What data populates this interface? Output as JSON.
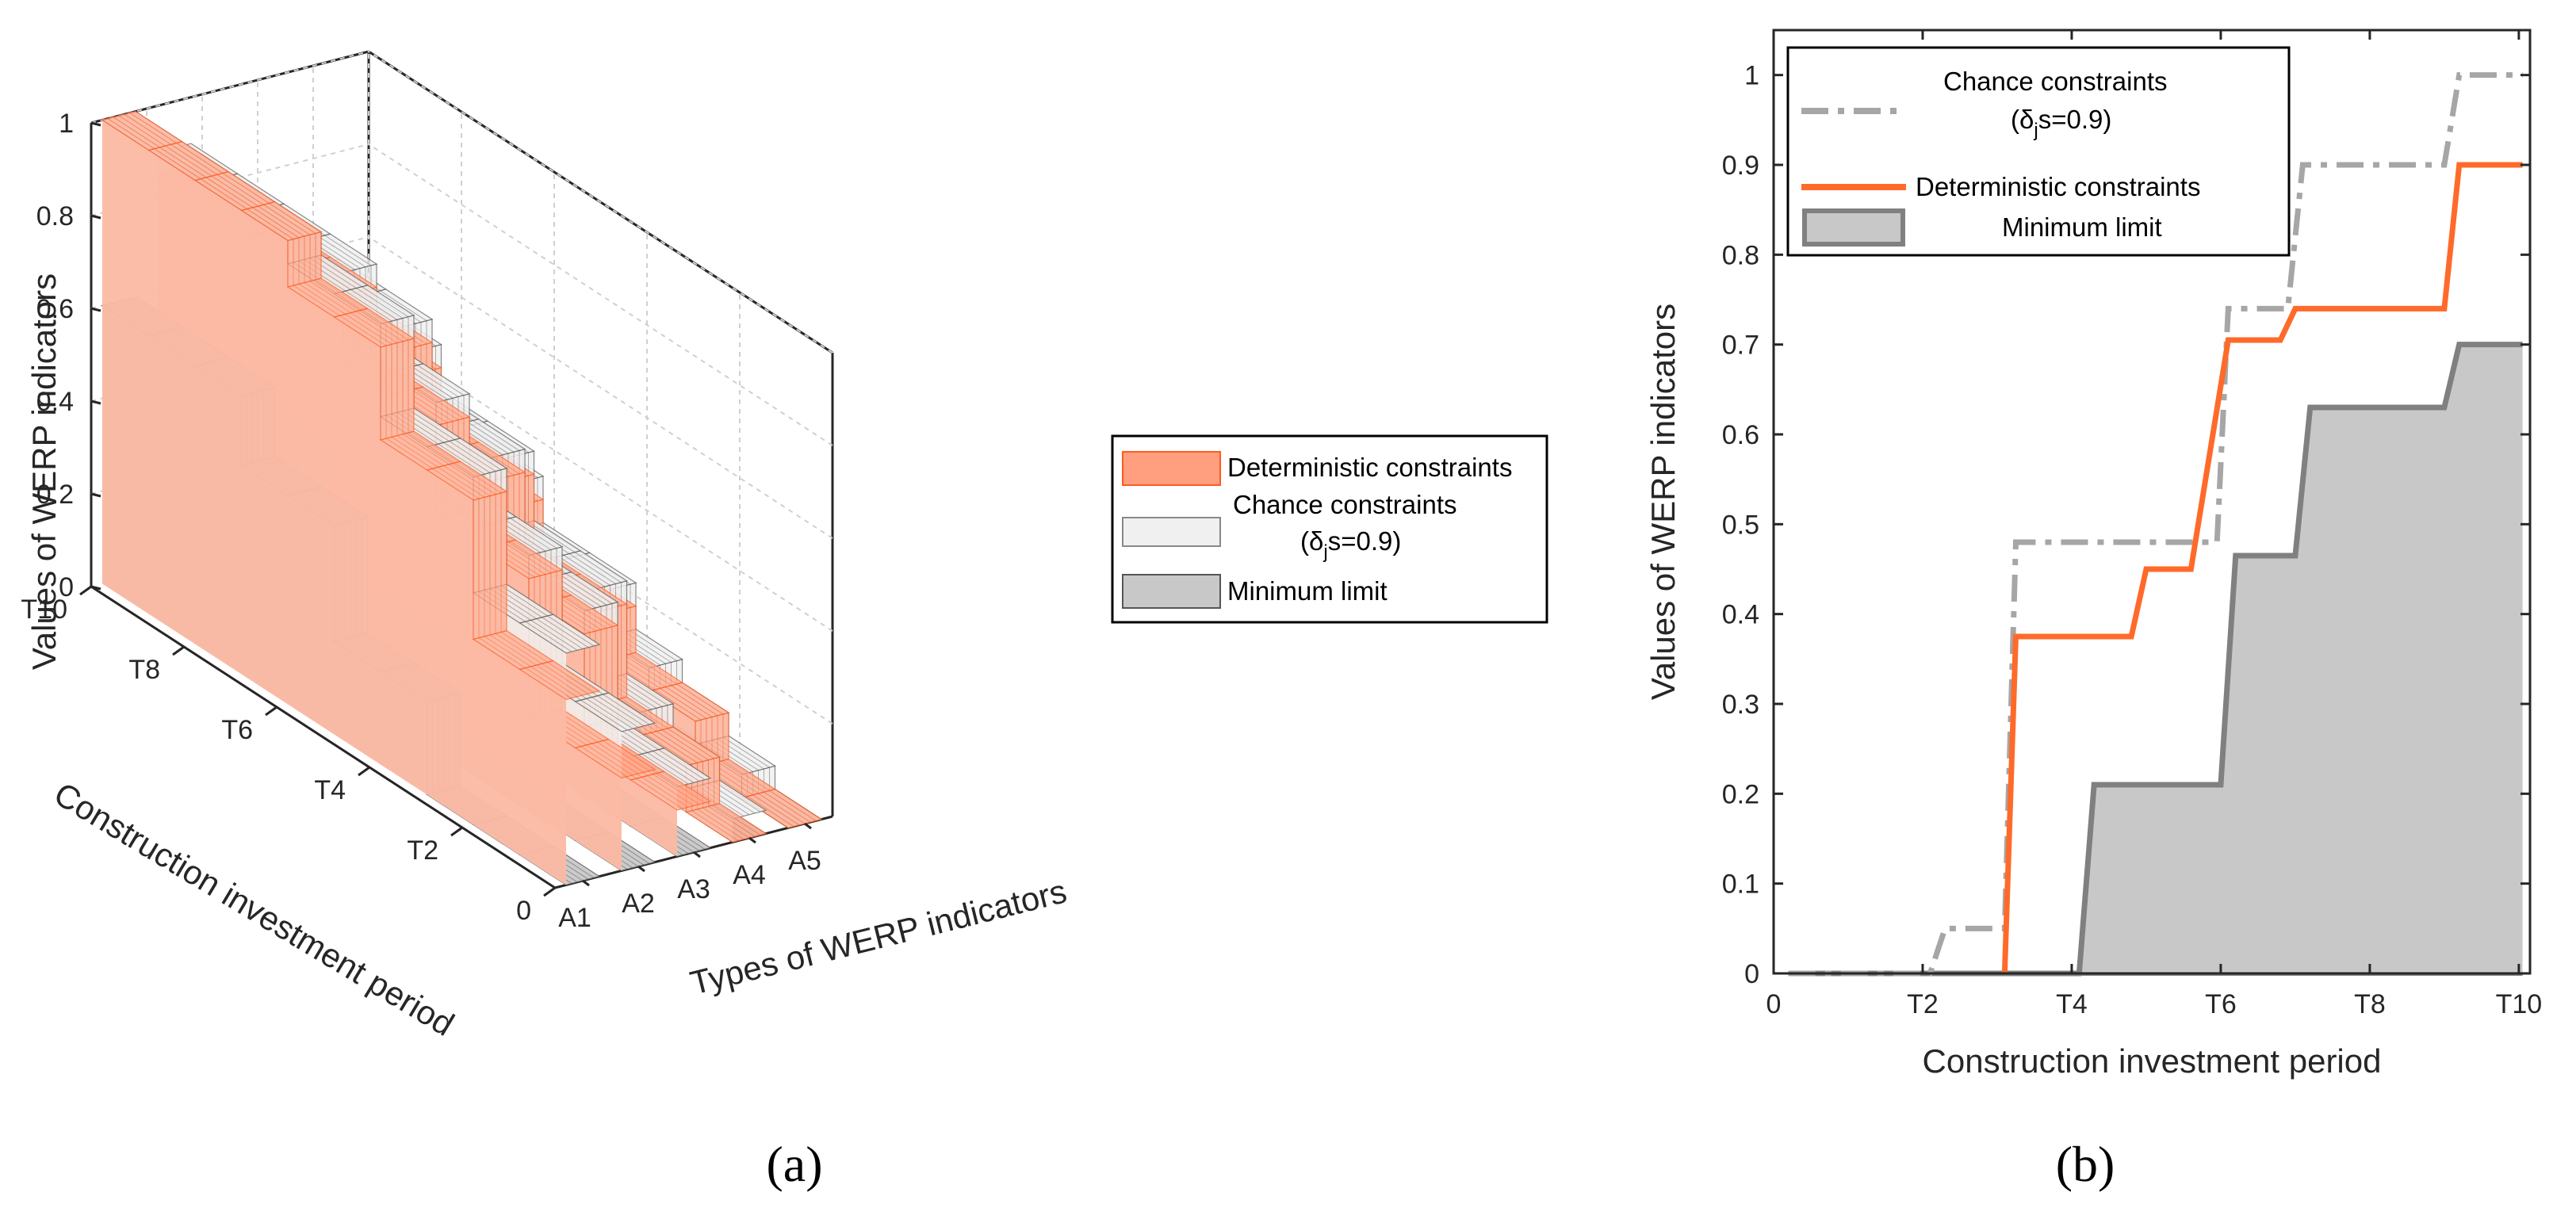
{
  "figure": {
    "panel_a_label": "(a)",
    "panel_b_label": "(b)"
  },
  "chart_data": [
    {
      "id": "a",
      "type": "3d-stacked-surface",
      "title": "",
      "zlabel": "Values of WERP indicators",
      "xlabel": "Types of WERP indicators",
      "ylabel": "Construction investment period",
      "z_ticks": [
        "0",
        "0.2",
        "0.4",
        "0.6",
        "0.8",
        "1"
      ],
      "x_ticks": [
        "A1",
        "A2",
        "A3",
        "A4",
        "A5"
      ],
      "y_ticks": [
        "0",
        "T2",
        "T4",
        "T6",
        "T8",
        "T10"
      ],
      "zlim": [
        0,
        1
      ],
      "legend": {
        "position": "right",
        "entries": [
          {
            "name": "Deterministic constraints",
            "sub": "",
            "color": "#ff9f7f",
            "edge": "#ff5a1f"
          },
          {
            "name": "Chance constraints",
            "sub": "(δ",
            "sub_j": "j",
            "sub_rest": "s=0.9)",
            "color": "#f0f0f0",
            "edge": "#888888"
          },
          {
            "name": "Minimum limit",
            "sub": "",
            "color": "#c8c8c8",
            "edge": "#555555"
          }
        ]
      },
      "series": [
        {
          "name": "Minimum limit",
          "values_by_indicator": [
            [
              0,
              0,
              0,
              0.2,
              0.2,
              0.45,
              0.45,
              0.6,
              0.6,
              0.6
            ],
            [
              0,
              0,
              0,
              0,
              0.2,
              0.2,
              0.2,
              0.45,
              0.45,
              0.45
            ],
            [
              0,
              0,
              0,
              0,
              0,
              0.2,
              0.2,
              0.2,
              0.4,
              0.4
            ],
            [
              0,
              0,
              0,
              0,
              0,
              0,
              0.2,
              0.2,
              0.2,
              0.2
            ],
            [
              0,
              0,
              0,
              0,
              0,
              0,
              0,
              0,
              0.1,
              0.1
            ]
          ]
        },
        {
          "name": "Deterministic constraints",
          "values_by_indicator": [
            [
              0.4,
              0.4,
              0.7,
              0.7,
              0.9,
              0.9,
              1,
              1,
              1,
              1
            ],
            [
              0.2,
              0.2,
              0.5,
              0.5,
              0.7,
              0.7,
              0.85,
              0.85,
              0.85,
              0.85
            ],
            [
              0.1,
              0.1,
              0.35,
              0.35,
              0.55,
              0.55,
              0.7,
              0.7,
              0.7,
              0.7
            ],
            [
              0,
              0.1,
              0.1,
              0.3,
              0.3,
              0.45,
              0.45,
              0.55,
              0.55,
              0.55
            ],
            [
              0,
              0,
              0.1,
              0.1,
              0.2,
              0.2,
              0.3,
              0.3,
              0.3,
              0.3
            ]
          ]
        },
        {
          "name": "Chance constraints",
          "values_by_indicator": [
            [
              0.5,
              0.5,
              0.75,
              0.75,
              0.95,
              0.95,
              1,
              1,
              1,
              1
            ],
            [
              0.3,
              0.3,
              0.55,
              0.55,
              0.75,
              0.75,
              0.9,
              0.9,
              0.9,
              0.9
            ],
            [
              0.15,
              0.15,
              0.4,
              0.4,
              0.6,
              0.6,
              0.75,
              0.75,
              0.75,
              0.75
            ],
            [
              0.05,
              0.1,
              0.15,
              0.35,
              0.35,
              0.5,
              0.5,
              0.6,
              0.6,
              0.6
            ],
            [
              0,
              0.05,
              0.1,
              0.15,
              0.25,
              0.25,
              0.35,
              0.35,
              0.35,
              0.35
            ]
          ]
        }
      ]
    },
    {
      "id": "b",
      "type": "step-line",
      "title": "",
      "xlabel": "Construction investment period",
      "ylabel": "Values of WERP indicators",
      "x_tick_values": [
        0,
        2,
        4,
        6,
        8,
        10
      ],
      "x_tick_labels": [
        "0",
        "T2",
        "T4",
        "T6",
        "T8",
        "T10"
      ],
      "y_tick_values": [
        0,
        0.1,
        0.2,
        0.3,
        0.4,
        0.5,
        0.6,
        0.7,
        0.8,
        0.9,
        1
      ],
      "y_tick_labels": [
        "0",
        "0.1",
        "0.2",
        "0.3",
        "0.4",
        "0.5",
        "0.6",
        "0.7",
        "0.8",
        "0.9",
        "1"
      ],
      "xlim": [
        0,
        10.15
      ],
      "ylim": [
        0,
        1.05
      ],
      "legend": {
        "position": "top-left",
        "entries": [
          {
            "name": "Chance constraints",
            "sub_prefix": "(δ",
            "sub_j": "j",
            "sub_rest": "s=0.9)"
          },
          {
            "name": "Deterministic constraints"
          },
          {
            "name": "Minimum limit"
          }
        ]
      },
      "series": [
        {
          "name": "Chance constraints",
          "style": "dash-dot",
          "color": "#a6a6a6",
          "x": [
            0.2,
            2.1,
            2.3,
            3.1,
            3.25,
            5.95,
            6.1,
            6.9,
            7.1,
            9.0,
            9.2,
            10.05
          ],
          "y": [
            0,
            0,
            0.05,
            0.05,
            0.48,
            0.48,
            0.74,
            0.74,
            0.9,
            0.9,
            1.0,
            1.0
          ]
        },
        {
          "name": "Deterministic constraints",
          "style": "solid",
          "color": "#ff6a2a",
          "x": [
            3.1,
            3.25,
            4.8,
            5.0,
            5.6,
            6.1,
            6.8,
            7.0,
            9.0,
            9.2,
            10.05
          ],
          "y": [
            0,
            0.375,
            0.375,
            0.45,
            0.45,
            0.705,
            0.705,
            0.74,
            0.74,
            0.9,
            0.9
          ]
        },
        {
          "name": "Minimum limit",
          "style": "area",
          "color": "#808080",
          "fill": "#c8c8c8",
          "x": [
            0.2,
            4.1,
            4.3,
            6.0,
            6.2,
            7.0,
            7.2,
            9.0,
            9.2,
            10.05
          ],
          "y": [
            0,
            0,
            0.21,
            0.21,
            0.465,
            0.465,
            0.63,
            0.63,
            0.7,
            0.7
          ]
        }
      ]
    }
  ]
}
